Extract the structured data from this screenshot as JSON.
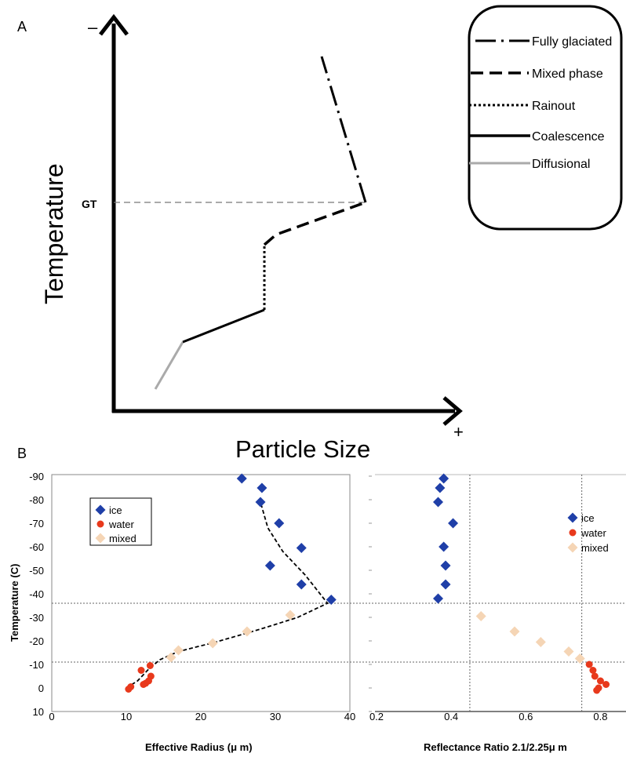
{
  "panel_a": {
    "label": "A",
    "y_axis_label": "Temperature",
    "x_axis_label": "Particle Size",
    "y_top_sign": "–",
    "x_right_sign": "+",
    "gt_label": "GT",
    "legend": [
      {
        "name": "Fully glaciated",
        "style": "dashdot",
        "color": "#000000"
      },
      {
        "name": "Mixed phase",
        "style": "dashed",
        "color": "#000000"
      },
      {
        "name": "Rainout",
        "style": "dotted",
        "color": "#000000"
      },
      {
        "name": "Coalescence",
        "style": "solid",
        "color": "#000000"
      },
      {
        "name": "Diffusional",
        "style": "solid",
        "color": "#aaaaaa"
      }
    ]
  },
  "panel_b": {
    "label": "B"
  },
  "chart_data": [
    {
      "type": "scatter",
      "xlabel": "Effective Radius (μ m)",
      "ylabel": "Temperature (C)",
      "xlim": [
        0,
        40
      ],
      "ylim": [
        10,
        -90
      ],
      "xticks": [
        "0",
        "10",
        "20",
        "30",
        "40"
      ],
      "yticks": [
        "-90",
        "-80",
        "-70",
        "-60",
        "-50",
        "-40",
        "-30",
        "-20",
        "-10",
        "0",
        "10"
      ],
      "legend_position": "top-left",
      "reference_lines_y": [
        -36,
        -11
      ],
      "series": [
        {
          "name": "ice",
          "marker": "diamond",
          "color": "#1f3fa8",
          "points": [
            [
              25.5,
              -89
            ],
            [
              28.2,
              -85
            ],
            [
              28,
              -79
            ],
            [
              30.5,
              -70
            ],
            [
              33.5,
              -59.5
            ],
            [
              29.3,
              -52
            ],
            [
              33.5,
              -44
            ],
            [
              37.5,
              -37.5
            ]
          ]
        },
        {
          "name": "water",
          "marker": "circle",
          "color": "#e8391c",
          "points": [
            [
              12,
              -7.5
            ],
            [
              13.2,
              -9.5
            ],
            [
              13.3,
              -5
            ],
            [
              13,
              -3
            ],
            [
              12.6,
              -2
            ],
            [
              12.3,
              -1.5
            ],
            [
              10.6,
              -0.5
            ],
            [
              10.3,
              0.5
            ]
          ]
        },
        {
          "name": "mixed",
          "marker": "diamond",
          "color": "#f5d5b5",
          "points": [
            [
              17,
              -16
            ],
            [
              16,
              -13
            ],
            [
              21.6,
              -19
            ],
            [
              26.2,
              -24
            ],
            [
              32,
              -31
            ]
          ]
        }
      ],
      "fit_curve": [
        [
          10,
          0
        ],
        [
          11.5,
          -3
        ],
        [
          13,
          -8
        ],
        [
          14.5,
          -12
        ],
        [
          17,
          -15.5
        ],
        [
          22,
          -19.5
        ],
        [
          28,
          -25
        ],
        [
          33,
          -30
        ],
        [
          37,
          -36
        ],
        [
          34,
          -48
        ],
        [
          31,
          -58
        ],
        [
          29,
          -68
        ],
        [
          28,
          -79
        ]
      ]
    },
    {
      "type": "scatter",
      "xlabel": "Reflectance Ratio 2.1/2.25μ m",
      "xlim": [
        0.2,
        0.9
      ],
      "ylim": [
        10,
        -90
      ],
      "xticks": [
        "0.2",
        "0.4",
        "0.6",
        "0.8"
      ],
      "legend_position": "top-right",
      "reference_lines_x": [
        0.45,
        0.75
      ],
      "series": [
        {
          "name": "ice",
          "marker": "diamond",
          "color": "#1f3fa8",
          "points": [
            [
              0.38,
              -89
            ],
            [
              0.37,
              -85
            ],
            [
              0.365,
              -79
            ],
            [
              0.405,
              -70
            ],
            [
              0.38,
              -60
            ],
            [
              0.385,
              -52
            ],
            [
              0.385,
              -44
            ],
            [
              0.365,
              -38
            ]
          ]
        },
        {
          "name": "water",
          "marker": "circle",
          "color": "#e8391c",
          "points": [
            [
              0.77,
              -10
            ],
            [
              0.78,
              -7.5
            ],
            [
              0.785,
              -5
            ],
            [
              0.8,
              -3
            ],
            [
              0.815,
              -1.5
            ],
            [
              0.795,
              0
            ],
            [
              0.79,
              1
            ]
          ]
        },
        {
          "name": "mixed",
          "marker": "diamond",
          "color": "#f5d5b5",
          "points": [
            [
              0.48,
              -30.5
            ],
            [
              0.57,
              -24
            ],
            [
              0.64,
              -19.5
            ],
            [
              0.715,
              -15.5
            ],
            [
              0.745,
              -12.5
            ]
          ]
        }
      ]
    }
  ]
}
